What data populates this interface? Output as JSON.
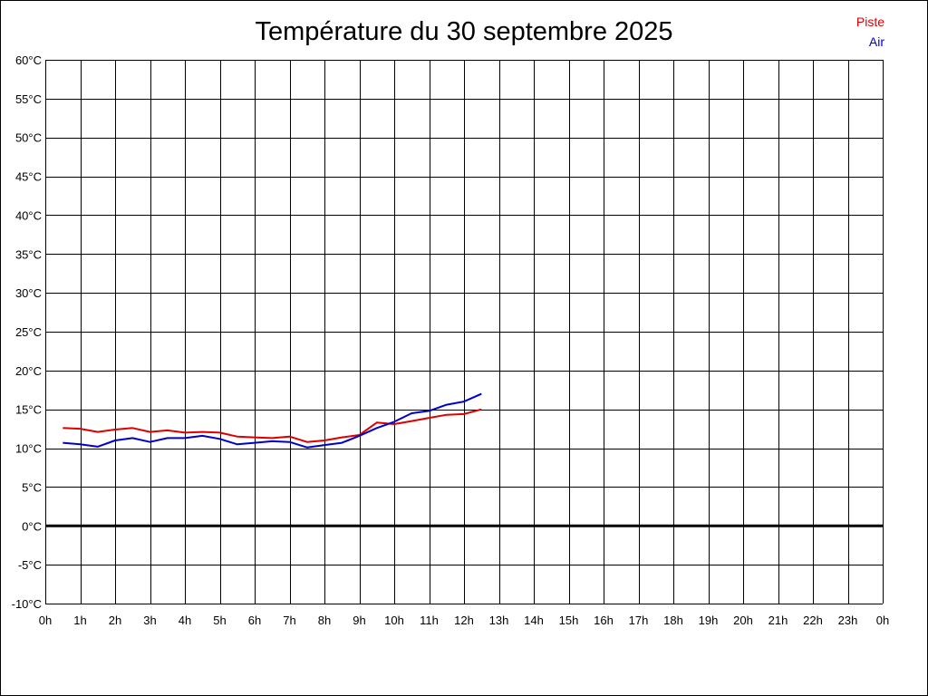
{
  "chart_data": {
    "type": "line",
    "title": "Température du 30 septembre 2025",
    "xlabel": "",
    "ylabel": "",
    "x_tick_labels": [
      "0h",
      "1h",
      "2h",
      "3h",
      "4h",
      "5h",
      "6h",
      "7h",
      "8h",
      "9h",
      "10h",
      "11h",
      "12h",
      "13h",
      "14h",
      "15h",
      "16h",
      "17h",
      "18h",
      "19h",
      "20h",
      "21h",
      "22h",
      "23h",
      "0h"
    ],
    "y_tick_labels": [
      "60°C",
      "55°C",
      "50°C",
      "45°C",
      "40°C",
      "35°C",
      "30°C",
      "25°C",
      "20°C",
      "15°C",
      "10°C",
      "5°C",
      "0°C",
      "-5°C",
      "-10°C"
    ],
    "xlim": [
      0,
      24
    ],
    "ylim": [
      -10,
      60
    ],
    "grid": true,
    "zero_line": true,
    "legend_position": "top-right",
    "series": [
      {
        "name": "Piste",
        "color": "#dd0000",
        "x": [
          0.5,
          1.0,
          1.5,
          2.0,
          2.5,
          3.0,
          3.5,
          4.0,
          4.5,
          5.0,
          5.5,
          6.0,
          6.5,
          7.0,
          7.5,
          8.0,
          8.5,
          9.0,
          9.5,
          10.0,
          10.5,
          11.0,
          11.5,
          12.0,
          12.5
        ],
        "y": [
          12.6,
          12.5,
          12.1,
          12.4,
          12.6,
          12.1,
          12.3,
          12.0,
          12.1,
          12.0,
          11.5,
          11.4,
          11.3,
          11.5,
          10.8,
          11.0,
          11.4,
          11.7,
          13.3,
          13.1,
          13.5,
          13.9,
          14.3,
          14.4,
          15.0
        ]
      },
      {
        "name": "Air",
        "color": "#0000cc",
        "x": [
          0.5,
          1.0,
          1.5,
          2.0,
          2.5,
          3.0,
          3.5,
          4.0,
          4.5,
          5.0,
          5.5,
          6.0,
          6.5,
          7.0,
          7.5,
          8.0,
          8.5,
          9.0,
          9.5,
          10.0,
          10.5,
          11.0,
          11.5,
          12.0,
          12.5
        ],
        "y": [
          10.7,
          10.5,
          10.2,
          11.0,
          11.3,
          10.8,
          11.3,
          11.3,
          11.6,
          11.2,
          10.5,
          10.7,
          10.9,
          10.8,
          10.1,
          10.4,
          10.7,
          11.6,
          12.6,
          13.4,
          14.5,
          14.8,
          15.6,
          16.0,
          17.0
        ]
      }
    ]
  }
}
